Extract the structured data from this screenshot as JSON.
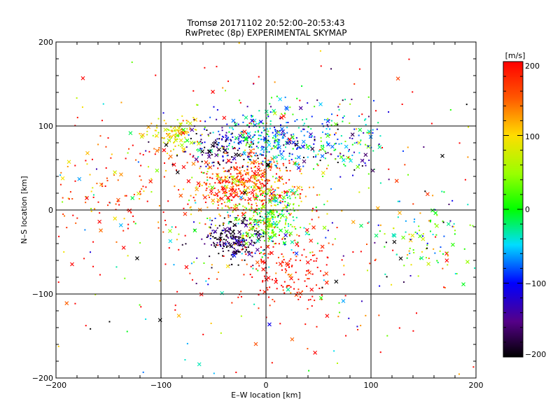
{
  "chart_data": {
    "type": "scatter",
    "title": "Tromsø 20171102 20:52:00–20:53:43",
    "subtitle": "RwPretec (8p) EXPERIMENTAL SKYMAP",
    "xlabel": "E–W location [km]",
    "ylabel": "N–S location [km]",
    "xlim": [
      -200,
      200
    ],
    "ylim": [
      -200,
      200
    ],
    "x_ticks": [
      -200,
      -100,
      0,
      100,
      200
    ],
    "y_ticks": [
      -200,
      -100,
      0,
      100,
      200
    ],
    "x_tick_labels": [
      "−200",
      "−100",
      "0",
      "100",
      "200"
    ],
    "y_tick_labels": [
      "−200",
      "−100",
      "0",
      "100",
      "200"
    ],
    "grid": true,
    "colorbar": {
      "label": "[m/s]",
      "range": [
        -200,
        200
      ],
      "ticks": [
        200,
        100,
        0,
        -100,
        -200
      ],
      "tick_labels": [
        "200",
        "100",
        "0",
        "−100",
        "−200"
      ],
      "colormap": "black-purple-blue-cyan-green-yellow-orange-red"
    },
    "point_styles": [
      "dot",
      "cross"
    ],
    "clusters": [
      {
        "x": -20,
        "y": 30,
        "sx": 25,
        "sy": 18,
        "n": 450,
        "v": 170,
        "vs": 60
      },
      {
        "x": 5,
        "y": 85,
        "sx": 28,
        "sy": 18,
        "n": 300,
        "v": -60,
        "vs": 50
      },
      {
        "x": -32,
        "y": -35,
        "sx": 15,
        "sy": 12,
        "n": 220,
        "v": -180,
        "vs": 40
      },
      {
        "x": 5,
        "y": -10,
        "sx": 16,
        "sy": 18,
        "n": 280,
        "v": 20,
        "vs": 50
      },
      {
        "x": -85,
        "y": 90,
        "sx": 12,
        "sy": 10,
        "n": 110,
        "v": 90,
        "vs": 30
      },
      {
        "x": -45,
        "y": 75,
        "sx": 18,
        "sy": 14,
        "n": 120,
        "v": -170,
        "vs": 40
      },
      {
        "x": 70,
        "y": 80,
        "sx": 25,
        "sy": 25,
        "n": 160,
        "v": -60,
        "vs": 80
      },
      {
        "x": 20,
        "y": -70,
        "sx": 25,
        "sy": 25,
        "n": 160,
        "v": 190,
        "vs": 30
      },
      {
        "x": -150,
        "y": 20,
        "sx": 35,
        "sy": 30,
        "n": 120,
        "v": 160,
        "vs": 70
      },
      {
        "x": 150,
        "y": -40,
        "sx": 25,
        "sy": 25,
        "n": 90,
        "v": 20,
        "vs": 80
      },
      {
        "x": 0,
        "y": 0,
        "sx": 120,
        "sy": 110,
        "n": 450,
        "v": 80,
        "vs": 160
      }
    ]
  }
}
